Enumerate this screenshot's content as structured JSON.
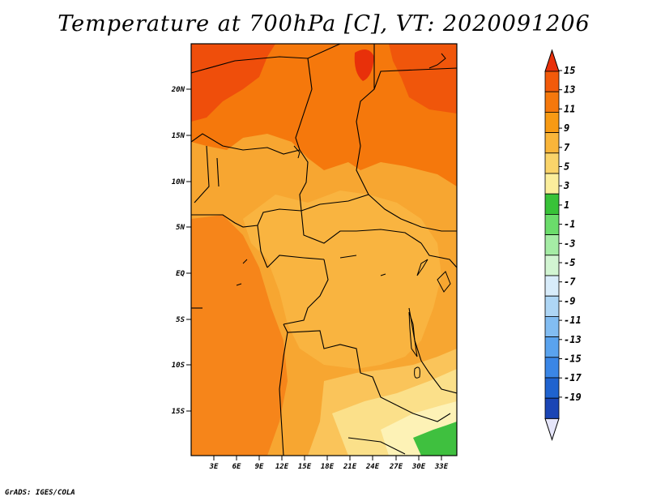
{
  "title": "Temperature at 700hPa [C], VT: 2020091206",
  "credit": "GrADS: IGES/COLA",
  "map": {
    "region": "Central Africa",
    "lat_labels": [
      "20N",
      "15N",
      "10N",
      "5N",
      "EQ",
      "5S",
      "10S",
      "15S"
    ],
    "lon_labels": [
      "3E",
      "6E",
      "9E",
      "12E",
      "15E",
      "18E",
      "21E",
      "24E",
      "27E",
      "30E",
      "33E"
    ]
  },
  "colorbar": {
    "labels": [
      "15",
      "13",
      "11",
      "9",
      "7",
      "5",
      "3",
      "1",
      "-1",
      "-3",
      "-5",
      "-7",
      "-9",
      "-11",
      "-13",
      "-15",
      "-17",
      "-19"
    ],
    "colors": [
      "#e8300a",
      "#f25a0a",
      "#f5780c",
      "#f79a14",
      "#f9b53a",
      "#fad46a",
      "#fbee9c",
      "#38c238",
      "#6bdc6b",
      "#a5eca5",
      "#d2f5d2",
      "#d8ecfa",
      "#aed6f5",
      "#82bdf2",
      "#5aa3ee",
      "#3a86e6",
      "#1f63cf",
      "#1a45b5",
      "#0f2a8a"
    ],
    "top_color": "#e8300a",
    "bottom_color": "#e6e6fa"
  }
}
